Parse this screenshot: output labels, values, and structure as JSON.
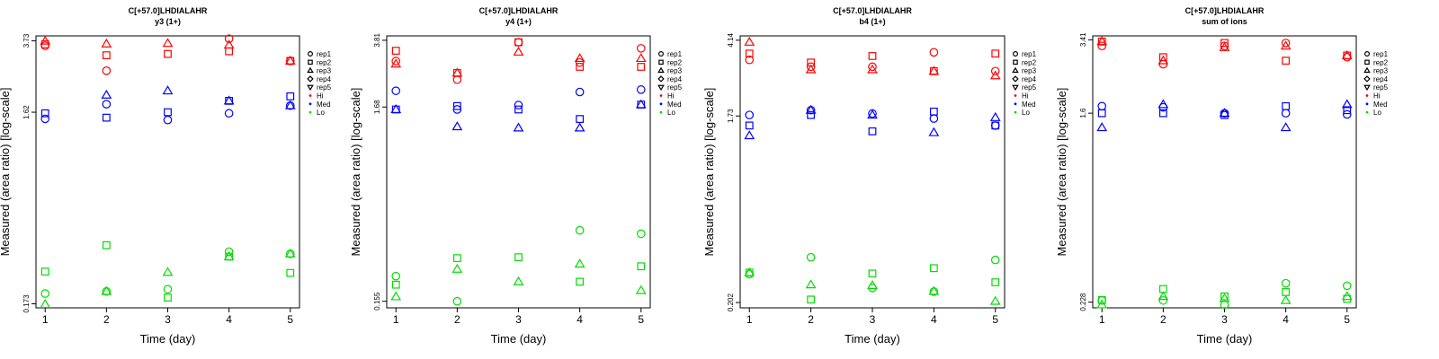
{
  "figure": {
    "xlabel": "Time (day)",
    "ylabel": "Measured (area ratio) [log-scale]",
    "legend": [
      "rep1",
      "rep2",
      "rep3",
      "rep4",
      "rep5",
      "Hi",
      "Med",
      "Lo"
    ],
    "legend_placement": "right"
  },
  "colors": {
    "Hi": "#ff0000",
    "Med": "#0000ff",
    "Lo": "#00dd00"
  },
  "chart_data": [
    {
      "type": "scatter",
      "title": "C[+57.0]LHDIALAHR",
      "subtitle": "y3 (1+)",
      "xlabel": "Time (day)",
      "ylabel": "Measured (area ratio) [log-scale]",
      "yscale": "log",
      "x": [
        1,
        2,
        3,
        4,
        5
      ],
      "xlim": [
        0.85,
        5.15
      ],
      "yticks": [
        "0.173",
        "1.62",
        "3.73"
      ],
      "ytick_values": [
        0.173,
        1.62,
        3.73
      ],
      "ylim": [
        0.165,
        3.95
      ],
      "series": [
        {
          "name": "Hi",
          "points": [
            [
              1,
              1,
              3.52
            ],
            [
              1,
              2,
              3.58
            ],
            [
              1,
              3,
              3.72
            ],
            [
              2,
              1,
              2.63
            ],
            [
              2,
              2,
              3.15
            ],
            [
              2,
              3,
              3.6
            ],
            [
              3,
              2,
              3.2
            ],
            [
              3,
              3,
              3.62
            ],
            [
              4,
              1,
              3.82
            ],
            [
              4,
              2,
              3.3
            ],
            [
              4,
              3,
              3.55
            ],
            [
              5,
              1,
              2.95
            ],
            [
              5,
              2,
              2.95
            ],
            [
              5,
              3,
              2.95
            ]
          ]
        },
        {
          "name": "Med",
          "points": [
            [
              1,
              1,
              1.5
            ],
            [
              1,
              2,
              1.6
            ],
            [
              2,
              1,
              1.78
            ],
            [
              2,
              2,
              1.52
            ],
            [
              2,
              3,
              1.98
            ],
            [
              3,
              1,
              1.48
            ],
            [
              3,
              2,
              1.62
            ],
            [
              3,
              3,
              2.08
            ],
            [
              4,
              1,
              1.6
            ],
            [
              4,
              2,
              1.85
            ],
            [
              4,
              3,
              1.85
            ],
            [
              5,
              1,
              1.75
            ],
            [
              5,
              2,
              1.95
            ],
            [
              5,
              3,
              1.75
            ]
          ]
        },
        {
          "name": "Lo",
          "points": [
            [
              1,
              1,
              0.195
            ],
            [
              1,
              2,
              0.252
            ],
            [
              1,
              3,
              0.172
            ],
            [
              2,
              1,
              0.2
            ],
            [
              2,
              2,
              0.343
            ],
            [
              2,
              3,
              0.2
            ],
            [
              3,
              1,
              0.205
            ],
            [
              3,
              2,
              0.186
            ],
            [
              3,
              3,
              0.25
            ],
            [
              4,
              1,
              0.318
            ],
            [
              4,
              2,
              0.3
            ],
            [
              4,
              3,
              0.3
            ],
            [
              5,
              1,
              0.31
            ],
            [
              5,
              2,
              0.248
            ],
            [
              5,
              3,
              0.31
            ]
          ]
        }
      ]
    },
    {
      "type": "scatter",
      "title": "C[+57.0]LHDIALAHR",
      "subtitle": "y4 (1+)",
      "xlabel": "Time (day)",
      "ylabel": "Measured (area ratio) [log-scale]",
      "yscale": "log",
      "x": [
        1,
        2,
        3,
        4,
        5
      ],
      "xlim": [
        0.85,
        5.15
      ],
      "yticks": [
        "0.155",
        "1.68",
        "3.81"
      ],
      "ytick_values": [
        0.155,
        1.68,
        3.81
      ],
      "ylim": [
        0.143,
        4.02
      ],
      "series": [
        {
          "name": "Hi",
          "points": [
            [
              1,
              1,
              2.95
            ],
            [
              1,
              2,
              3.35
            ],
            [
              1,
              3,
              2.85
            ],
            [
              2,
              1,
              2.35
            ],
            [
              2,
              2,
              2.55
            ],
            [
              2,
              3,
              2.55
            ],
            [
              3,
              1,
              3.72
            ],
            [
              3,
              2,
              3.72
            ],
            [
              3,
              3,
              3.3
            ],
            [
              4,
              1,
              2.9
            ],
            [
              4,
              2,
              2.75
            ],
            [
              4,
              3,
              3.05
            ],
            [
              5,
              1,
              3.45
            ],
            [
              5,
              2,
              2.75
            ],
            [
              5,
              3,
              3.05
            ]
          ]
        },
        {
          "name": "Med",
          "points": [
            [
              1,
              1,
              2.05
            ],
            [
              1,
              2,
              1.63
            ],
            [
              1,
              3,
              1.63
            ],
            [
              2,
              1,
              1.63
            ],
            [
              2,
              2,
              1.7
            ],
            [
              2,
              3,
              1.32
            ],
            [
              3,
              1,
              1.72
            ],
            [
              3,
              2,
              1.63
            ],
            [
              3,
              3,
              1.3
            ],
            [
              4,
              1,
              2.02
            ],
            [
              4,
              2,
              1.45
            ],
            [
              4,
              3,
              1.3
            ],
            [
              5,
              1,
              2.08
            ],
            [
              5,
              2,
              1.73
            ],
            [
              5,
              3,
              1.73
            ]
          ]
        },
        {
          "name": "Lo",
          "points": [
            [
              1,
              1,
              0.211
            ],
            [
              1,
              2,
              0.19
            ],
            [
              1,
              3,
              0.164
            ],
            [
              2,
              1,
              0.155
            ],
            [
              2,
              2,
              0.263
            ],
            [
              2,
              3,
              0.23
            ],
            [
              3,
              2,
              0.266
            ],
            [
              3,
              3,
              0.197
            ],
            [
              4,
              1,
              0.37
            ],
            [
              4,
              2,
              0.197
            ],
            [
              4,
              3,
              0.245
            ],
            [
              5,
              1,
              0.355
            ],
            [
              5,
              2,
              0.238
            ],
            [
              5,
              3,
              0.177
            ]
          ]
        }
      ]
    },
    {
      "type": "scatter",
      "title": "C[+57.0]LHDIALAHR",
      "subtitle": "b4 (1+)",
      "xlabel": "Time (day)",
      "ylabel": "Measured (area ratio) [log-scale]",
      "yscale": "log",
      "x": [
        1,
        2,
        3,
        4,
        5
      ],
      "xlim": [
        0.85,
        5.15
      ],
      "yticks": [
        "0.202",
        "1.73",
        "4.14"
      ],
      "ytick_values": [
        0.202,
        1.73,
        4.14
      ],
      "ylim": [
        0.19,
        4.35
      ],
      "series": [
        {
          "name": "Hi",
          "points": [
            [
              1,
              1,
              3.3
            ],
            [
              1,
              2,
              3.55
            ],
            [
              1,
              3,
              4.05
            ],
            [
              2,
              1,
              3.05
            ],
            [
              2,
              2,
              3.2
            ],
            [
              2,
              3,
              2.95
            ],
            [
              3,
              1,
              3.05
            ],
            [
              3,
              2,
              3.45
            ],
            [
              3,
              3,
              2.95
            ],
            [
              4,
              1,
              3.6
            ],
            [
              4,
              2,
              2.9
            ],
            [
              4,
              3,
              2.9
            ],
            [
              5,
              1,
              2.9
            ],
            [
              5,
              2,
              3.55
            ],
            [
              5,
              3,
              2.75
            ]
          ]
        },
        {
          "name": "Med",
          "points": [
            [
              1,
              1,
              1.75
            ],
            [
              1,
              2,
              1.55
            ],
            [
              1,
              3,
              1.38
            ],
            [
              2,
              1,
              1.85
            ],
            [
              2,
              2,
              1.75
            ],
            [
              2,
              3,
              1.85
            ],
            [
              3,
              1,
              1.78
            ],
            [
              3,
              2,
              1.45
            ],
            [
              3,
              3,
              1.75
            ],
            [
              4,
              1,
              1.68
            ],
            [
              4,
              2,
              1.82
            ],
            [
              4,
              3,
              1.43
            ],
            [
              5,
              1,
              1.55
            ],
            [
              5,
              2,
              1.55
            ],
            [
              5,
              3,
              1.7
            ]
          ]
        },
        {
          "name": "Lo",
          "points": [
            [
              1,
              1,
              0.28
            ],
            [
              1,
              2,
              0.285
            ],
            [
              1,
              3,
              0.285
            ],
            [
              2,
              1,
              0.34
            ],
            [
              2,
              2,
              0.209
            ],
            [
              2,
              3,
              0.248
            ],
            [
              3,
              1,
              0.239
            ],
            [
              3,
              2,
              0.282
            ],
            [
              3,
              3,
              0.246
            ],
            [
              4,
              1,
              0.229
            ],
            [
              4,
              2,
              0.3
            ],
            [
              4,
              3,
              0.23
            ],
            [
              5,
              1,
              0.33
            ],
            [
              5,
              2,
              0.255
            ],
            [
              5,
              3,
              0.205
            ]
          ]
        }
      ]
    },
    {
      "type": "scatter",
      "title": "C[+57.0]LHDIALAHR",
      "subtitle": "sum of ions",
      "xlabel": "Time (day)",
      "ylabel": "Measured (area ratio) [log-scale]",
      "yscale": "log",
      "x": [
        1,
        2,
        3,
        4,
        5
      ],
      "xlim": [
        0.85,
        5.15
      ],
      "yticks": [
        "0.228",
        "1.6",
        "3.41"
      ],
      "ytick_values": [
        0.228,
        1.6,
        3.41
      ],
      "ylim": [
        0.215,
        3.55
      ],
      "series": [
        {
          "name": "Hi",
          "points": [
            [
              1,
              1,
              3.2
            ],
            [
              1,
              2,
              3.35
            ],
            [
              1,
              3,
              3.35
            ],
            [
              2,
              1,
              2.65
            ],
            [
              2,
              2,
              2.85
            ],
            [
              2,
              3,
              2.75
            ],
            [
              3,
              1,
              3.2
            ],
            [
              3,
              2,
              3.3
            ],
            [
              3,
              3,
              3.15
            ],
            [
              4,
              1,
              3.3
            ],
            [
              4,
              2,
              2.75
            ],
            [
              4,
              3,
              3.2
            ],
            [
              5,
              1,
              2.85
            ],
            [
              5,
              2,
              2.9
            ],
            [
              5,
              3,
              2.9
            ]
          ]
        },
        {
          "name": "Med",
          "points": [
            [
              1,
              1,
              1.72
            ],
            [
              1,
              2,
              1.6
            ],
            [
              1,
              3,
              1.38
            ],
            [
              2,
              1,
              1.7
            ],
            [
              2,
              2,
              1.6
            ],
            [
              2,
              3,
              1.75
            ],
            [
              3,
              1,
              1.6
            ],
            [
              3,
              2,
              1.57
            ],
            [
              3,
              3,
              1.6
            ],
            [
              4,
              1,
              1.6
            ],
            [
              4,
              2,
              1.72
            ],
            [
              4,
              3,
              1.38
            ],
            [
              5,
              1,
              1.58
            ],
            [
              5,
              2,
              1.65
            ],
            [
              5,
              3,
              1.75
            ]
          ]
        },
        {
          "name": "Lo",
          "points": [
            [
              1,
              1,
              0.232
            ],
            [
              1,
              2,
              0.233
            ],
            [
              1,
              3,
              0.222
            ],
            [
              2,
              1,
              0.232
            ],
            [
              2,
              2,
              0.261
            ],
            [
              2,
              3,
              0.242
            ],
            [
              3,
              1,
              0.222
            ],
            [
              3,
              2,
              0.242
            ],
            [
              3,
              3,
              0.237
            ],
            [
              4,
              1,
              0.277
            ],
            [
              4,
              2,
              0.253
            ],
            [
              4,
              3,
              0.232
            ],
            [
              5,
              1,
              0.27
            ],
            [
              5,
              2,
              0.236
            ],
            [
              5,
              3,
              0.242
            ]
          ]
        }
      ]
    }
  ]
}
